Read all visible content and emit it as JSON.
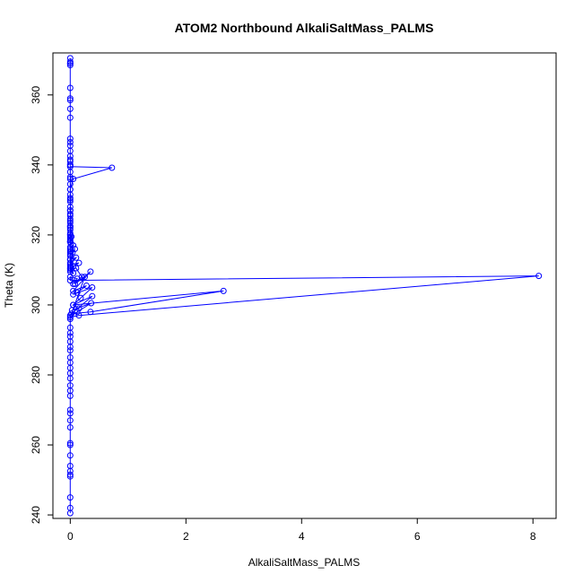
{
  "chart_data": {
    "type": "line",
    "title": "ATOM2 Northbound AlkaliSaltMass_PALMS",
    "xlabel": "AlkaliSaltMass_PALMS",
    "ylabel": "Theta (K)",
    "xlim": [
      -0.3,
      8.4
    ],
    "ylim": [
      239,
      372
    ],
    "xticks": [
      0,
      2,
      4,
      6,
      8
    ],
    "yticks": [
      240,
      260,
      280,
      300,
      320,
      340,
      360
    ],
    "grid": false,
    "legend": "none",
    "line_color": "#0000ff",
    "marker": "open-circle",
    "series": [
      {
        "x": [
          0,
          0,
          0,
          0,
          0,
          0,
          0,
          0,
          0,
          0,
          0,
          0,
          0,
          0,
          0,
          0,
          0,
          0,
          0,
          0,
          0,
          0,
          0,
          0,
          0,
          0,
          0,
          0,
          0,
          0,
          0,
          0,
          0,
          0,
          0,
          0,
          0,
          0,
          0,
          0,
          0,
          0.02,
          0,
          0,
          0.01,
          0,
          0,
          0.72,
          0.05,
          0,
          0,
          0,
          0,
          0,
          0,
          0,
          0,
          0,
          0,
          0,
          0,
          0,
          0,
          0.05,
          0,
          0,
          0.04,
          0,
          0.08,
          0,
          0.1,
          0,
          0.15,
          0.05,
          0,
          0,
          0.05,
          0,
          0.1,
          0.2,
          0.05,
          0.12,
          0,
          0,
          8.1,
          0.15,
          0,
          0.25,
          0.08,
          0.35,
          0.05,
          0.28,
          0.12,
          0.05,
          0.38,
          0.18,
          0.05,
          2.65,
          0.35,
          0.02,
          0.38,
          0.05,
          0.15,
          0.03,
          0.36,
          0.12,
          0,
          0,
          0,
          0,
          0,
          0,
          0,
          0,
          0,
          0,
          0,
          0,
          0,
          0,
          0,
          0,
          0,
          0,
          0,
          0,
          0,
          0,
          0,
          0,
          0,
          0,
          0,
          0,
          0,
          0
        ],
        "y": [
          370.5,
          369.5,
          369,
          368.5,
          369,
          362,
          359,
          358.5,
          356,
          353.5,
          347.5,
          346.5,
          345.5,
          344,
          342.5,
          341.5,
          341,
          340,
          339.5,
          338,
          336.5,
          336,
          334.5,
          333,
          331.5,
          330.5,
          329.5,
          328,
          327,
          326,
          325.5,
          324.5,
          323.5,
          322.5,
          321.5,
          320.5,
          319.5,
          318.5,
          318,
          322.5,
          320,
          319.5,
          319,
          318,
          317.5,
          340,
          339.5,
          339.2,
          336,
          333,
          330,
          327,
          324,
          322,
          320,
          318,
          316.5,
          315,
          314,
          313,
          312,
          311,
          310.5,
          317,
          316,
          315.5,
          315,
          314.5,
          316,
          313,
          313.5,
          311.5,
          312,
          311,
          310,
          309.5,
          309,
          310.5,
          310.5,
          308,
          306,
          307.5,
          308,
          307,
          308.3,
          297,
          296.5,
          308,
          306,
          309.5,
          304,
          305.5,
          303.5,
          303,
          305,
          302,
          300,
          304,
          298,
          297.5,
          302.5,
          300,
          299,
          298.5,
          300.5,
          298,
          297,
          296,
          293.5,
          292,
          291,
          289.5,
          288,
          287,
          285,
          283.5,
          282,
          280.5,
          279,
          277,
          275.5,
          274,
          270,
          269,
          267,
          265,
          260.5,
          260,
          257,
          254,
          252.5,
          251.5,
          251,
          245,
          242,
          240.5
        ]
      }
    ]
  }
}
